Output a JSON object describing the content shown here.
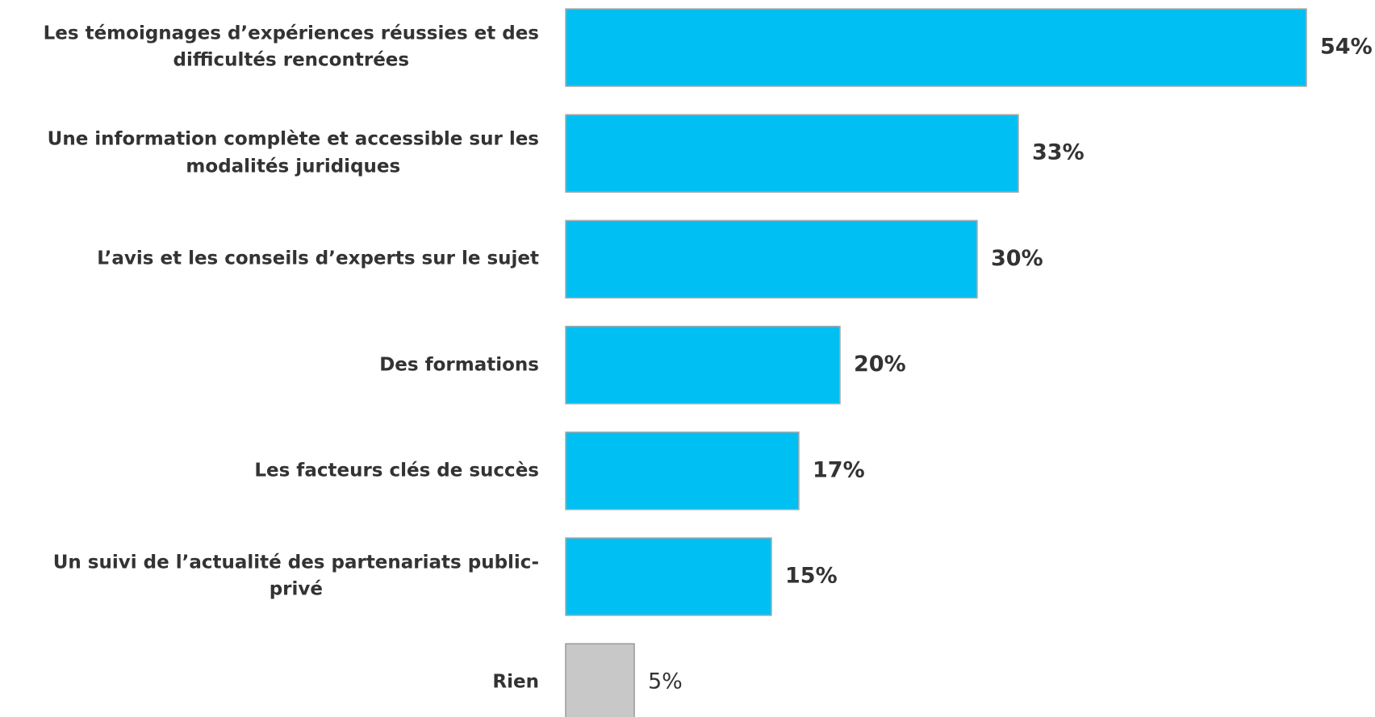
{
  "chart_data": {
    "type": "barh",
    "categories": [
      "Les témoignages d’expériences réussies et des\ndifficultés rencontrées",
      "Une information complète et accessible sur les\nmodalités juridiques",
      "L’avis et les conseils d’experts sur le sujet",
      "Des formations",
      "Les facteurs clés de succès",
      "Un suivi de l’actualité des partenariats public-\nprivé",
      "Rien"
    ],
    "values": [
      54,
      33,
      30,
      20,
      17,
      15,
      5
    ],
    "value_labels": [
      "54%",
      "33%",
      "30%",
      "20%",
      "17%",
      "15%",
      "5%"
    ],
    "colors": [
      "#00bff3",
      "#00bff3",
      "#00bff3",
      "#00bff3",
      "#00bff3",
      "#00bff3",
      "#c8c8c8"
    ],
    "xlim": [
      0,
      58
    ]
  }
}
